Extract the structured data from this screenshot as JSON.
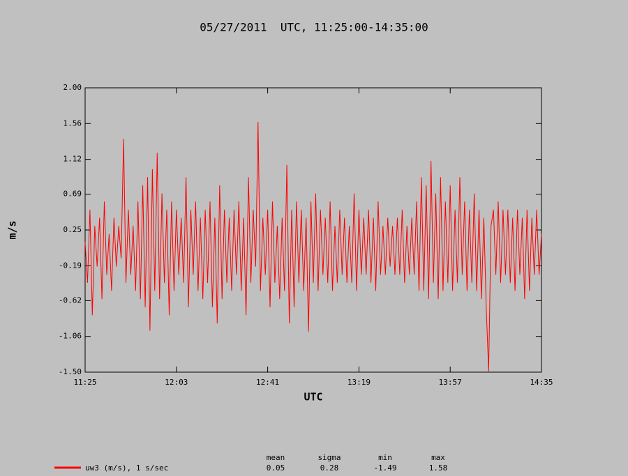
{
  "chart_data": {
    "type": "line",
    "title": "05/27/2011  UTC, 11:25:00-14:35:00",
    "xlabel": "UTC",
    "ylabel": "m/s",
    "xlim": [
      "11:25",
      "14:35"
    ],
    "xticks": [
      "11:25",
      "12:03",
      "12:41",
      "13:19",
      "13:57",
      "14:35"
    ],
    "ylim": [
      -1.5,
      2
    ],
    "yticks": [
      {
        "value": -1.5,
        "label": "-1.50"
      },
      -1.06,
      -0.62,
      -0.19,
      0.25,
      0.69,
      1.12,
      1.56,
      {
        "value": 2,
        "label": "2.00"
      }
    ],
    "stats": [
      {
        "label": "mean",
        "value": 0.05
      },
      {
        "label": "sigma",
        "value": 0.28
      },
      {
        "label": "min",
        "value": -1.49
      },
      {
        "label": "max",
        "value": 1.58
      }
    ],
    "x": [
      "11:25",
      "11:26",
      "11:27",
      "11:28",
      "11:29",
      "11:30",
      "11:31",
      "11:32",
      "11:33",
      "11:34",
      "11:35",
      "11:36",
      "11:37",
      "11:38",
      "11:39",
      "11:40",
      "11:41",
      "11:42",
      "11:43",
      "11:44",
      "11:45",
      "11:46",
      "11:47",
      "11:48",
      "11:49",
      "11:50",
      "11:51",
      "11:52",
      "11:53",
      "11:54",
      "11:55",
      "11:56",
      "11:57",
      "11:58",
      "11:59",
      "12:00",
      "12:01",
      "12:02",
      "12:03",
      "12:04",
      "12:05",
      "12:06",
      "12:07",
      "12:08",
      "12:09",
      "12:10",
      "12:11",
      "12:12",
      "12:13",
      "12:14",
      "12:15",
      "12:16",
      "12:17",
      "12:18",
      "12:19",
      "12:20",
      "12:21",
      "12:22",
      "12:23",
      "12:24",
      "12:25",
      "12:26",
      "12:27",
      "12:28",
      "12:29",
      "12:30",
      "12:31",
      "12:32",
      "12:33",
      "12:34",
      "12:35",
      "12:36",
      "12:37",
      "12:38",
      "12:39",
      "12:40",
      "12:41",
      "12:42",
      "12:43",
      "12:44",
      "12:45",
      "12:46",
      "12:47",
      "12:48",
      "12:49",
      "12:50",
      "12:51",
      "12:52",
      "12:53",
      "12:54",
      "12:55",
      "12:56",
      "12:57",
      "12:58",
      "12:59",
      "13:00",
      "13:01",
      "13:02",
      "13:03",
      "13:04",
      "13:05",
      "13:06",
      "13:07",
      "13:08",
      "13:09",
      "13:10",
      "13:11",
      "13:12",
      "13:13",
      "13:14",
      "13:15",
      "13:16",
      "13:17",
      "13:18",
      "13:19",
      "13:20",
      "13:21",
      "13:22",
      "13:23",
      "13:24",
      "13:25",
      "13:26",
      "13:27",
      "13:28",
      "13:29",
      "13:30",
      "13:31",
      "13:32",
      "13:33",
      "13:34",
      "13:35",
      "13:36",
      "13:37",
      "13:38",
      "13:39",
      "13:40",
      "13:41",
      "13:42",
      "13:43",
      "13:44",
      "13:45",
      "13:46",
      "13:47",
      "13:48",
      "13:49",
      "13:50",
      "13:51",
      "13:52",
      "13:53",
      "13:54",
      "13:55",
      "13:56",
      "13:57",
      "13:58",
      "13:59",
      "14:00",
      "14:01",
      "14:02",
      "14:03",
      "14:04",
      "14:05",
      "14:06",
      "14:07",
      "14:08",
      "14:09",
      "14:10",
      "14:11",
      "14:12",
      "14:13",
      "14:14",
      "14:15",
      "14:16",
      "14:17",
      "14:18",
      "14:19",
      "14:20",
      "14:21",
      "14:22",
      "14:23",
      "14:24",
      "14:25",
      "14:26",
      "14:27",
      "14:28",
      "14:29",
      "14:30",
      "14:31",
      "14:32",
      "14:33",
      "14:34",
      "14:35"
    ],
    "series": [
      {
        "name": "uw3 (m/s), 1 s/sec",
        "color": "#ff0000",
        "values": [
          0.1,
          -0.4,
          0.5,
          -0.8,
          0.3,
          -0.2,
          0.4,
          -0.6,
          0.6,
          -0.3,
          0.2,
          -0.5,
          0.4,
          -0.2,
          0.3,
          -0.1,
          1.37,
          -0.4,
          0.5,
          -0.3,
          0.3,
          -0.5,
          0.6,
          -0.6,
          0.8,
          -0.7,
          0.9,
          -0.99,
          1.0,
          -0.5,
          1.2,
          -0.6,
          0.7,
          -0.4,
          0.5,
          -0.8,
          0.6,
          -0.5,
          0.5,
          -0.3,
          0.4,
          -0.4,
          0.9,
          -0.7,
          0.5,
          -0.3,
          0.6,
          -0.5,
          0.4,
          -0.6,
          0.5,
          -0.4,
          0.6,
          -0.7,
          0.4,
          -0.9,
          0.8,
          -0.6,
          0.5,
          -0.4,
          0.4,
          -0.5,
          0.5,
          -0.3,
          0.6,
          -0.5,
          0.4,
          -0.8,
          0.9,
          -0.4,
          0.5,
          -0.2,
          1.58,
          -0.5,
          0.4,
          -0.3,
          0.5,
          -0.7,
          0.6,
          -0.4,
          0.3,
          -0.6,
          0.4,
          -0.5,
          1.05,
          -0.9,
          0.5,
          -0.7,
          0.6,
          -0.4,
          0.5,
          -0.5,
          0.4,
          -1.0,
          0.6,
          -0.4,
          0.7,
          -0.5,
          0.5,
          -0.3,
          0.4,
          -0.4,
          0.6,
          -0.5,
          0.3,
          -0.4,
          0.5,
          -0.3,
          0.4,
          -0.4,
          0.3,
          -0.4,
          0.7,
          -0.5,
          0.5,
          -0.3,
          0.4,
          -0.3,
          0.5,
          -0.4,
          0.4,
          -0.5,
          0.6,
          -0.3,
          0.3,
          -0.3,
          0.4,
          -0.2,
          0.3,
          -0.3,
          0.4,
          -0.3,
          0.5,
          -0.4,
          0.3,
          -0.3,
          0.4,
          -0.3,
          0.6,
          -0.5,
          0.9,
          -0.5,
          0.8,
          -0.6,
          1.1,
          -0.4,
          0.7,
          -0.6,
          0.9,
          -0.5,
          0.6,
          -0.4,
          0.8,
          -0.5,
          0.5,
          -0.4,
          0.9,
          -0.3,
          0.6,
          -0.5,
          0.5,
          -0.4,
          0.7,
          -0.5,
          0.5,
          -0.6,
          0.4,
          -0.7,
          -1.49,
          0.3,
          0.5,
          -0.3,
          0.6,
          -0.4,
          0.5,
          -0.3,
          0.5,
          -0.4,
          0.4,
          -0.5,
          0.5,
          -0.3,
          0.4,
          -0.6,
          0.5,
          -0.5,
          0.4,
          -0.3,
          0.5,
          -0.3,
          0.2
        ]
      }
    ]
  }
}
